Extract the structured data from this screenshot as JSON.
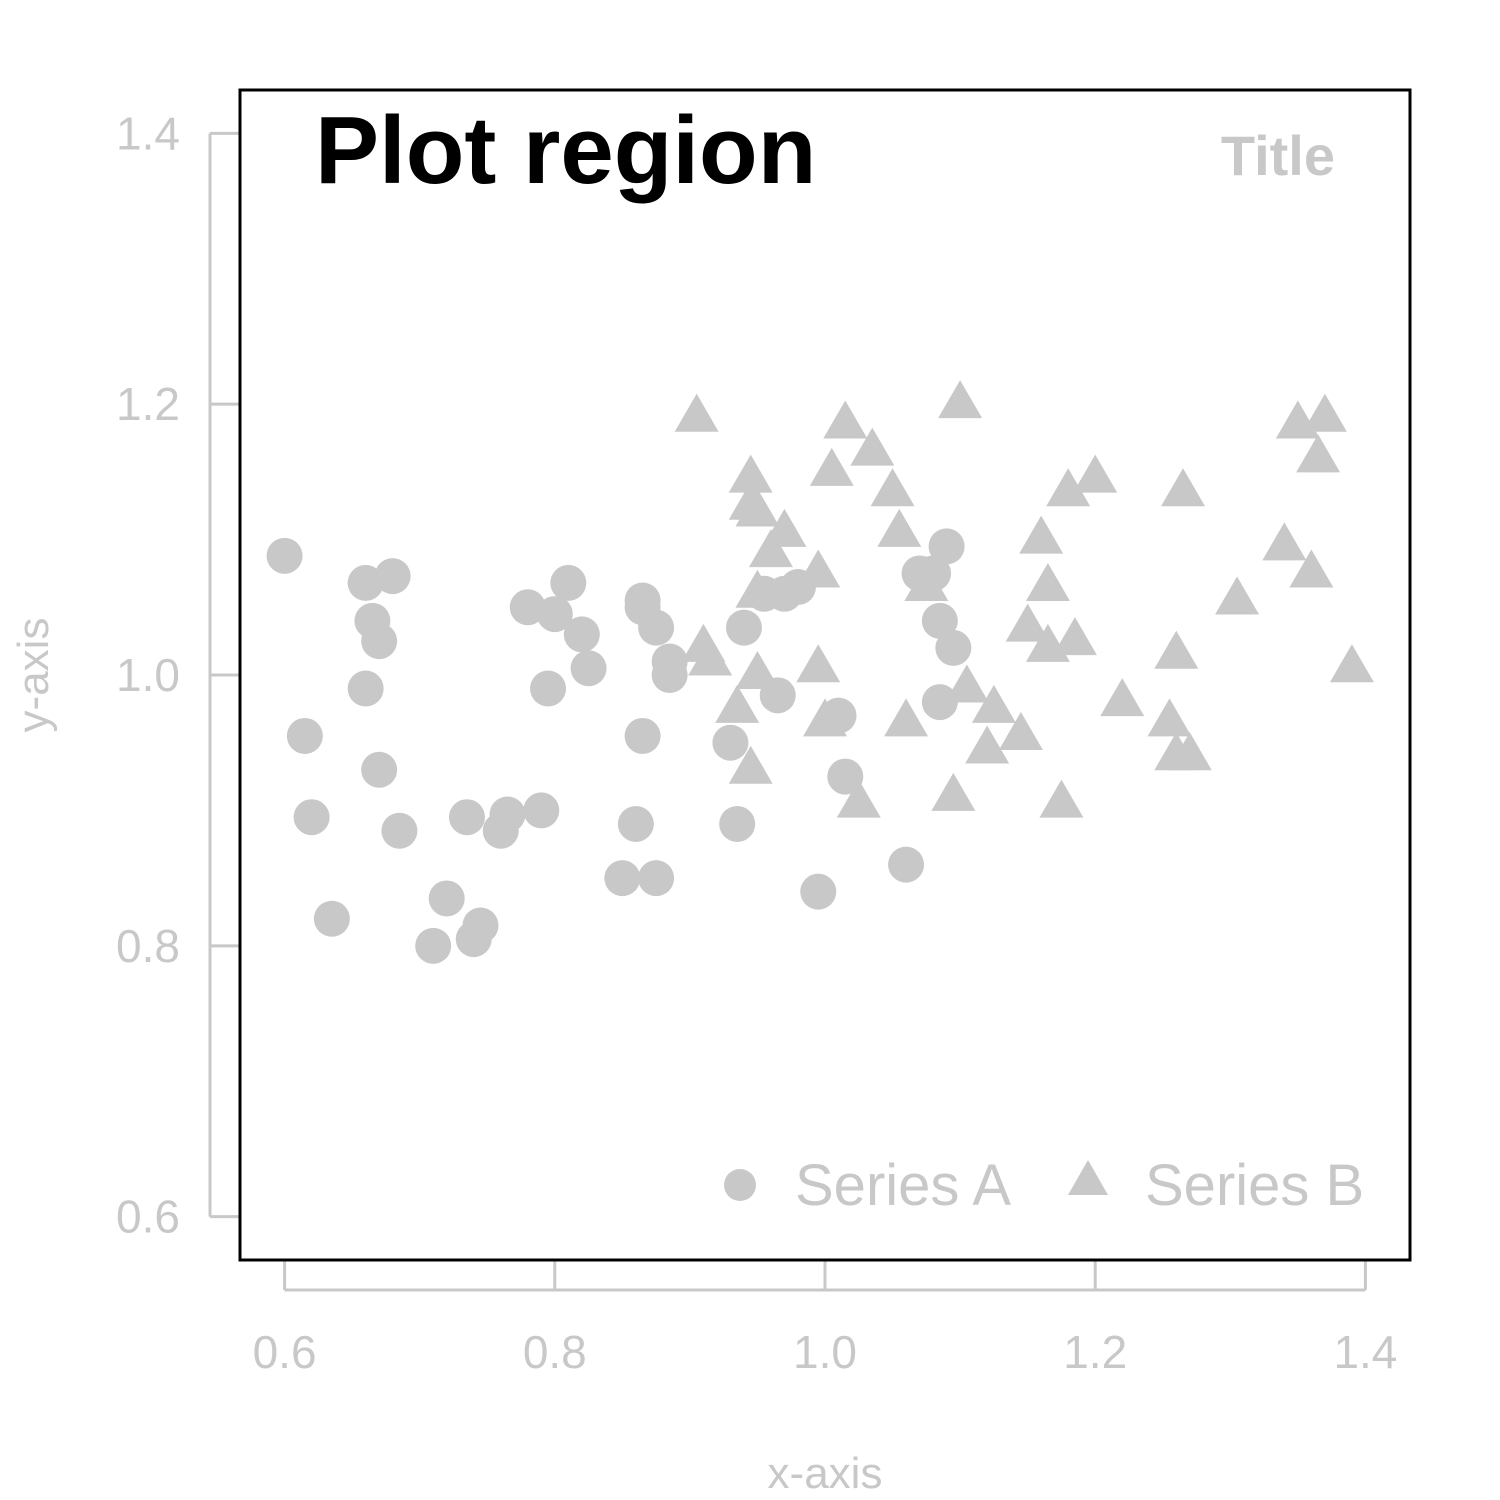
{
  "chart_data": {
    "type": "scatter",
    "annotation": "Plot region",
    "title": "Title",
    "xlabel": "x-axis",
    "ylabel": "y-axis",
    "xlim": [
      0.567,
      1.433
    ],
    "ylim": [
      0.568,
      1.432
    ],
    "x_ticks": [
      0.6,
      0.8,
      1.0,
      1.2,
      1.4
    ],
    "y_ticks": [
      0.6,
      0.8,
      1.0,
      1.2,
      1.4
    ],
    "x_tick_labels": [
      "0.6",
      "0.8",
      "1.0",
      "1.2",
      "1.4"
    ],
    "y_tick_labels": [
      "0.6",
      "0.8",
      "1.0",
      "1.2",
      "1.4"
    ],
    "grid": false,
    "legend": {
      "position": "bottom-right",
      "orientation": "horizontal"
    },
    "colors": {
      "marks": "#c8c8c8",
      "frame": "#000000",
      "annotation": "#000000"
    },
    "series": [
      {
        "name": "Series A",
        "marker": "circle",
        "points": [
          [
            0.6,
            1.088
          ],
          [
            0.615,
            0.955
          ],
          [
            0.62,
            0.895
          ],
          [
            0.635,
            0.82
          ],
          [
            0.66,
            1.068
          ],
          [
            0.665,
            1.04
          ],
          [
            0.67,
            1.025
          ],
          [
            0.66,
            0.99
          ],
          [
            0.67,
            0.93
          ],
          [
            0.68,
            1.073
          ],
          [
            0.685,
            0.885
          ],
          [
            0.71,
            0.8
          ],
          [
            0.72,
            0.835
          ],
          [
            0.735,
            0.895
          ],
          [
            0.74,
            0.805
          ],
          [
            0.745,
            0.815
          ],
          [
            0.76,
            0.885
          ],
          [
            0.765,
            0.897
          ],
          [
            0.78,
            1.05
          ],
          [
            0.79,
            0.9
          ],
          [
            0.795,
            0.99
          ],
          [
            0.8,
            1.045
          ],
          [
            0.81,
            1.068
          ],
          [
            0.82,
            1.03
          ],
          [
            0.825,
            1.005
          ],
          [
            0.85,
            0.85
          ],
          [
            0.86,
            0.89
          ],
          [
            0.865,
            1.055
          ],
          [
            0.865,
            1.05
          ],
          [
            0.865,
            0.955
          ],
          [
            0.875,
            1.035
          ],
          [
            0.875,
            0.85
          ],
          [
            0.885,
            1.01
          ],
          [
            0.885,
            1.0
          ],
          [
            0.93,
            0.95
          ],
          [
            0.935,
            0.89
          ],
          [
            0.94,
            1.035
          ],
          [
            0.955,
            1.06
          ],
          [
            0.965,
            0.985
          ],
          [
            0.97,
            1.06
          ],
          [
            0.98,
            1.065
          ],
          [
            0.995,
            0.84
          ],
          [
            1.01,
            0.97
          ],
          [
            1.015,
            0.925
          ],
          [
            1.06,
            0.86
          ],
          [
            1.07,
            1.075
          ],
          [
            1.08,
            1.075
          ],
          [
            1.085,
            1.04
          ],
          [
            1.085,
            0.98
          ],
          [
            1.09,
            1.095
          ],
          [
            1.095,
            1.02
          ]
        ]
      },
      {
        "name": "Series B",
        "marker": "triangle",
        "points": [
          [
            0.905,
            1.19
          ],
          [
            0.91,
            1.02
          ],
          [
            0.915,
            1.01
          ],
          [
            0.935,
            0.975
          ],
          [
            0.945,
            1.145
          ],
          [
            0.945,
            1.125
          ],
          [
            0.95,
            1.12
          ],
          [
            0.945,
            0.93
          ],
          [
            0.95,
            1.06
          ],
          [
            0.95,
            1.0
          ],
          [
            0.96,
            1.09
          ],
          [
            0.97,
            1.105
          ],
          [
            0.995,
            1.075
          ],
          [
            0.995,
            1.005
          ],
          [
            1.0,
            0.965
          ],
          [
            1.005,
            1.15
          ],
          [
            1.015,
            1.185
          ],
          [
            1.025,
            0.905
          ],
          [
            1.035,
            1.165
          ],
          [
            1.05,
            1.135
          ],
          [
            1.055,
            1.105
          ],
          [
            1.06,
            0.965
          ],
          [
            1.075,
            1.065
          ],
          [
            1.095,
            0.91
          ],
          [
            1.1,
            1.2
          ],
          [
            1.105,
            0.99
          ],
          [
            1.12,
            0.945
          ],
          [
            1.125,
            0.975
          ],
          [
            1.145,
            0.955
          ],
          [
            1.15,
            1.035
          ],
          [
            1.16,
            1.1
          ],
          [
            1.165,
            1.065
          ],
          [
            1.165,
            1.02
          ],
          [
            1.175,
            0.905
          ],
          [
            1.18,
            1.135
          ],
          [
            1.185,
            1.025
          ],
          [
            1.2,
            1.145
          ],
          [
            1.22,
            0.98
          ],
          [
            1.255,
            0.965
          ],
          [
            1.26,
            0.94
          ],
          [
            1.26,
            1.015
          ],
          [
            1.265,
            1.135
          ],
          [
            1.27,
            0.94
          ],
          [
            1.305,
            1.055
          ],
          [
            1.34,
            1.095
          ],
          [
            1.35,
            1.185
          ],
          [
            1.36,
            1.075
          ],
          [
            1.365,
            1.16
          ],
          [
            1.37,
            1.19
          ],
          [
            1.39,
            1.005
          ]
        ]
      }
    ]
  }
}
